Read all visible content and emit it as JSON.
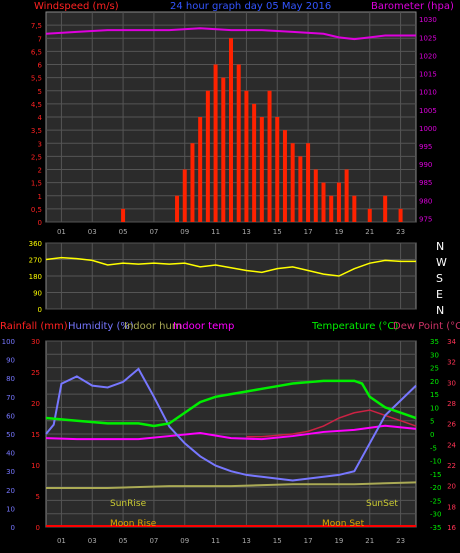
{
  "top": {
    "left_axis_label": "Windspeed (m/s)",
    "title": "24 hour graph day  05 May 2016",
    "right_axis_label": "Barometer (hpa)"
  },
  "direction": {
    "letters": [
      "N",
      "W",
      "S",
      "E",
      "N"
    ]
  },
  "bottom": {
    "labels": {
      "rainfall": "Rainfall (mm)",
      "humidity": "Humidity (%)",
      "indoor_hum": "Indoor hum",
      "indoor_temp": "Indoor temp",
      "temperature": "Temperature (°C)",
      "dew_point": "Dew Point (°C)"
    },
    "events": {
      "sunrise": "SunRise",
      "moonrise": "Moon Rise",
      "sunset": "SunSet",
      "moonset": "Moon Set"
    }
  },
  "colors": {
    "background": "#000000",
    "plot_bg": "#2b2b2b",
    "grid": "#555555",
    "windspeed": "#ff2200",
    "gust": "#00dd00",
    "avg_wind": "#ffffff",
    "barometer": "#dd00dd",
    "direction": "#ffff00",
    "humidity": "#7777ff",
    "indoor_hum": "#aaaa55",
    "indoor_temp": "#ff00ff",
    "temperature": "#00ee00",
    "dewpoint": "#cc2244",
    "rainfall": "#ff0000"
  },
  "chart_data": [
    {
      "type": "bar",
      "name": "wind",
      "x_ticks": [
        "01",
        "03",
        "05",
        "07",
        "09",
        "11",
        "13",
        "15",
        "17",
        "19",
        "21",
        "23"
      ],
      "x_range_hours": [
        0,
        24
      ],
      "y_left_ticks": [
        "0",
        "0,5",
        "1",
        "1,5",
        "2",
        "2,5",
        "3",
        "3,5",
        "4",
        "4,5",
        "5",
        "5,5",
        "6",
        "6,5",
        "7",
        "7,5"
      ],
      "y_left_range": [
        0,
        8
      ],
      "y_right_ticks": [
        "975",
        "980",
        "985",
        "990",
        "995",
        "1000",
        "1005",
        "1010",
        "1015",
        "1020",
        "1025",
        "1030"
      ],
      "y_right_range": [
        974,
        1032
      ],
      "series": [
        {
          "name": "Windspeed",
          "hours": [
            0,
            2,
            4,
            5,
            6,
            7,
            8,
            8.5,
            9,
            9.5,
            10,
            10.5,
            11,
            11.5,
            12,
            12.5,
            13,
            13.5,
            14,
            14.5,
            15,
            15.5,
            16,
            16.5,
            17,
            17.5,
            18,
            18.5,
            19,
            19.5,
            20,
            21,
            22,
            23,
            24
          ],
          "values": [
            0,
            0,
            0,
            0.5,
            0,
            0,
            0,
            1,
            2,
            3,
            4,
            5,
            6,
            5.5,
            7,
            6,
            5,
            4.5,
            4,
            5,
            4,
            3.5,
            3,
            2.5,
            3,
            2,
            1.5,
            1,
            1.5,
            2,
            1,
            0.5,
            1,
            0.5,
            0
          ]
        },
        {
          "name": "Barometer",
          "hours": [
            0,
            2,
            4,
            6,
            8,
            10,
            12,
            14,
            16,
            18,
            19,
            20,
            21,
            22,
            24
          ],
          "values": [
            1026,
            1026.5,
            1027,
            1027,
            1027,
            1027.5,
            1027,
            1027,
            1026.5,
            1026,
            1025,
            1024.5,
            1025,
            1025.5,
            1025.5
          ]
        }
      ]
    },
    {
      "type": "line",
      "name": "wind direction",
      "y_ticks": [
        "0",
        "90",
        "180",
        "270",
        "360"
      ],
      "y_range": [
        0,
        360
      ],
      "series": [
        {
          "name": "Direction",
          "hours": [
            0,
            1,
            2,
            3,
            4,
            5,
            6,
            7,
            8,
            9,
            10,
            11,
            12,
            13,
            14,
            15,
            16,
            17,
            18,
            19,
            20,
            21,
            22,
            23,
            24
          ],
          "values": [
            270,
            280,
            275,
            265,
            240,
            250,
            245,
            250,
            245,
            250,
            230,
            240,
            225,
            210,
            200,
            220,
            230,
            210,
            190,
            180,
            220,
            250,
            265,
            260,
            260
          ]
        }
      ]
    },
    {
      "type": "line",
      "name": "temperature humidity",
      "y_hum_ticks": [
        "0",
        "10",
        "20",
        "30",
        "40",
        "50",
        "60",
        "70",
        "80",
        "90",
        "100"
      ],
      "y_hum_range": [
        0,
        100
      ],
      "y_rain_ticks": [
        "0",
        "5",
        "10",
        "15",
        "20",
        "25",
        "30"
      ],
      "y_rain_range": [
        0,
        30
      ],
      "y_temp_ticks": [
        "-35",
        "-30",
        "-25",
        "-20",
        "-15",
        "-10",
        "-5",
        "0",
        "5",
        "10",
        "15",
        "20",
        "25",
        "30",
        "35"
      ],
      "y_temp_range": [
        -35,
        35
      ],
      "y_indoor_ticks": [
        "16",
        "18",
        "20",
        "22",
        "24",
        "26",
        "28",
        "30",
        "32",
        "34"
      ],
      "y_indoor_range": [
        16,
        34
      ],
      "series": [
        {
          "name": "Humidity",
          "hours": [
            0,
            0.5,
            1,
            2,
            3,
            4,
            5,
            6,
            7,
            8,
            9,
            10,
            11,
            12,
            13,
            14,
            15,
            16,
            17,
            18,
            19,
            20,
            21,
            22,
            23,
            24
          ],
          "values": [
            50,
            55,
            77,
            81,
            76,
            75,
            78,
            85,
            70,
            54,
            45,
            38,
            33,
            30,
            28,
            27,
            26,
            25,
            26,
            27,
            28,
            30,
            45,
            60,
            68,
            76
          ]
        },
        {
          "name": "Indoor hum",
          "hours": [
            0,
            4,
            8,
            12,
            16,
            20,
            24
          ],
          "values": [
            21,
            21,
            22,
            22,
            23,
            23,
            24
          ]
        },
        {
          "name": "Indoor temp",
          "hours": [
            0,
            2,
            4,
            6,
            8,
            10,
            12,
            14,
            16,
            18,
            20,
            22,
            24
          ],
          "values": [
            24.6,
            24.5,
            24.5,
            24.5,
            24.8,
            25.1,
            24.6,
            24.5,
            24.8,
            25.2,
            25.4,
            25.8,
            25.5
          ]
        },
        {
          "name": "Temperature",
          "hours": [
            0,
            2,
            4,
            6,
            7,
            8,
            9,
            10,
            11,
            12,
            13,
            14,
            15,
            16,
            17,
            18,
            19,
            20,
            20.5,
            21,
            22,
            23,
            24
          ],
          "values": [
            6,
            5,
            4,
            4,
            3,
            4,
            8,
            12,
            14,
            15,
            16,
            17,
            18,
            19,
            19.5,
            20,
            20,
            20,
            19,
            14,
            10,
            8,
            6
          ]
        },
        {
          "name": "Dew Point",
          "hours": [
            13,
            14,
            15,
            16,
            17,
            18,
            19,
            20,
            21,
            22,
            23,
            24
          ],
          "values": [
            -1,
            -1,
            -0.5,
            0,
            1,
            3,
            6,
            8,
            9,
            7,
            5,
            3
          ]
        }
      ]
    }
  ]
}
